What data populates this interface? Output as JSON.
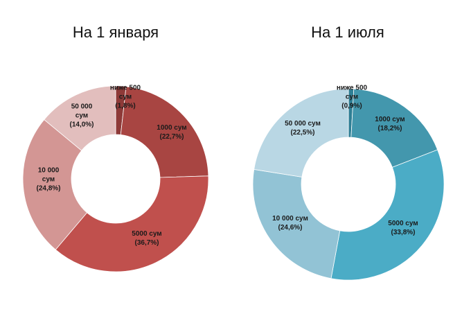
{
  "chart_data": [
    {
      "type": "pie",
      "subtype": "donut",
      "title": "На 1 января",
      "categories": [
        "ниже 500 сум",
        "1000 сум",
        "5000 сум",
        "10 000 сум",
        "50 000 сум"
      ],
      "values": [
        1.8,
        22.7,
        36.7,
        24.8,
        14.0
      ],
      "value_labels": [
        "(1,8%)",
        "(22,7%)",
        "(36,7%)",
        "(24,8%)",
        "(14,0%)"
      ],
      "label_lines": [
        [
          "ниже 500",
          "сум",
          "(1,8%)"
        ],
        [
          "1000 сум",
          "(22,7%)"
        ],
        [
          "5000 сум",
          "(36,7%)"
        ],
        [
          "10 000",
          "сум",
          "(24,8%)"
        ],
        [
          "50 000",
          "сум",
          "(14,0%)"
        ]
      ],
      "colors": [
        "#8e3a38",
        "#a84542",
        "#c0504d",
        "#d39694",
        "#e2bebd"
      ]
    },
    {
      "type": "pie",
      "subtype": "donut",
      "title": "На 1 июля",
      "categories": [
        "ниже 500 сум",
        "1000 сум",
        "5000 сум",
        "10 000 сум",
        "50 000 сум"
      ],
      "values": [
        0.9,
        18.2,
        33.8,
        24.6,
        22.5
      ],
      "value_labels": [
        "(0,9%)",
        "(18,2%)",
        "(33,8%)",
        "(24,6%)",
        "(22,5%)"
      ],
      "label_lines": [
        [
          "ниже 500",
          "сум",
          "(0,9%)"
        ],
        [
          "1000 сум",
          "(18,2%)"
        ],
        [
          "5000 сум",
          "(33,8%)"
        ],
        [
          "10 000 сум",
          "(24,6%)"
        ],
        [
          "50 000 сум",
          "(22,5%)"
        ]
      ],
      "colors": [
        "#2f7f95",
        "#4397ad",
        "#4bacc6",
        "#92c3d5",
        "#b9d7e4"
      ]
    }
  ]
}
